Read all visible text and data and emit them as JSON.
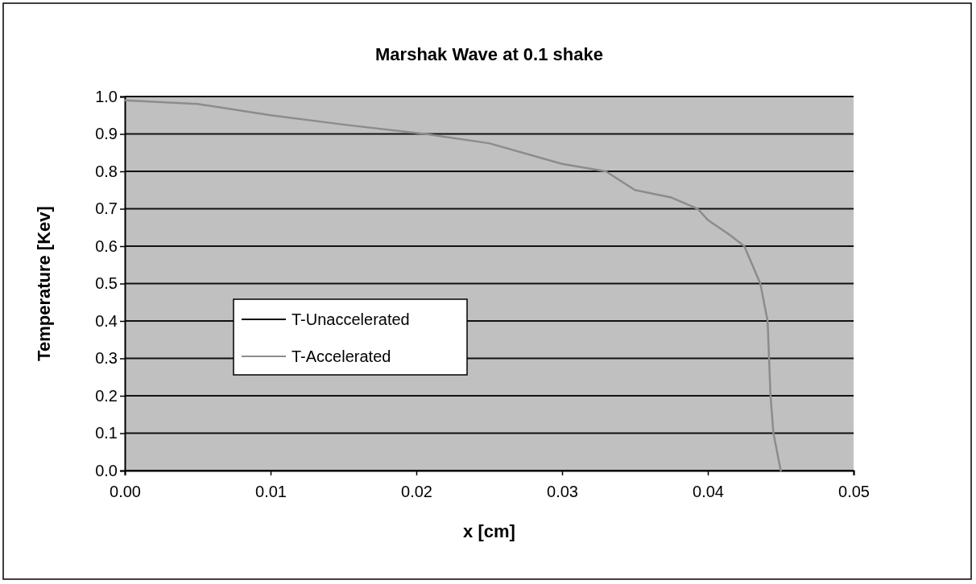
{
  "chart_data": {
    "type": "line",
    "title": "Marshak Wave at 0.1 shake",
    "xlabel": "x [cm]",
    "ylabel": "Temperature [Kev]",
    "xlim": [
      0,
      0.05
    ],
    "xticks": [
      {
        "value": 0,
        "label": "0.00"
      },
      {
        "value": 0.01,
        "label": "0.01"
      },
      {
        "value": 0.02,
        "label": "0.02"
      },
      {
        "value": 0.03,
        "label": "0.03"
      },
      {
        "value": 0.04,
        "label": "0.04"
      },
      {
        "value": 0.05,
        "label": "0.05"
      }
    ],
    "ylim": [
      0,
      1
    ],
    "yticks": [
      {
        "value": 0,
        "label": "0.0"
      },
      {
        "value": 0.1,
        "label": "0.1"
      },
      {
        "value": 0.2,
        "label": "0.2"
      },
      {
        "value": 0.3,
        "label": "0.3"
      },
      {
        "value": 0.4,
        "label": "0.4"
      },
      {
        "value": 0.5,
        "label": "0.5"
      },
      {
        "value": 0.6,
        "label": "0.6"
      },
      {
        "value": 0.7,
        "label": "0.7"
      },
      {
        "value": 0.8,
        "label": "0.8"
      },
      {
        "value": 0.9,
        "label": "0.9"
      },
      {
        "value": 1.0,
        "label": "1.0"
      }
    ],
    "x": [
      0,
      0.005,
      0.01,
      0.015,
      0.0206,
      0.025,
      0.03,
      0.033,
      0.035,
      0.0375,
      0.0393,
      0.04,
      0.0415,
      0.0425,
      0.0436,
      0.0441,
      0.0442,
      0.0443,
      0.0445,
      0.045
    ],
    "series": [
      {
        "name": "T-Unaccelerated",
        "color": "#000000",
        "values": [
          null,
          null,
          null,
          null,
          null,
          null,
          null,
          null,
          null,
          null,
          null,
          null,
          null,
          null,
          null,
          null,
          null,
          null,
          null,
          null
        ]
      },
      {
        "name": "T-Accelerated",
        "color": "#8c8c8c",
        "values": [
          0.99,
          0.98,
          0.95,
          0.925,
          0.9,
          0.875,
          0.82,
          0.8,
          0.75,
          0.73,
          0.7,
          0.67,
          0.63,
          0.6,
          0.5,
          0.4,
          0.3,
          0.2,
          0.1,
          0.0
        ]
      }
    ],
    "grid": "y",
    "legend": "left",
    "marker": "none",
    "line_style": "solid"
  }
}
